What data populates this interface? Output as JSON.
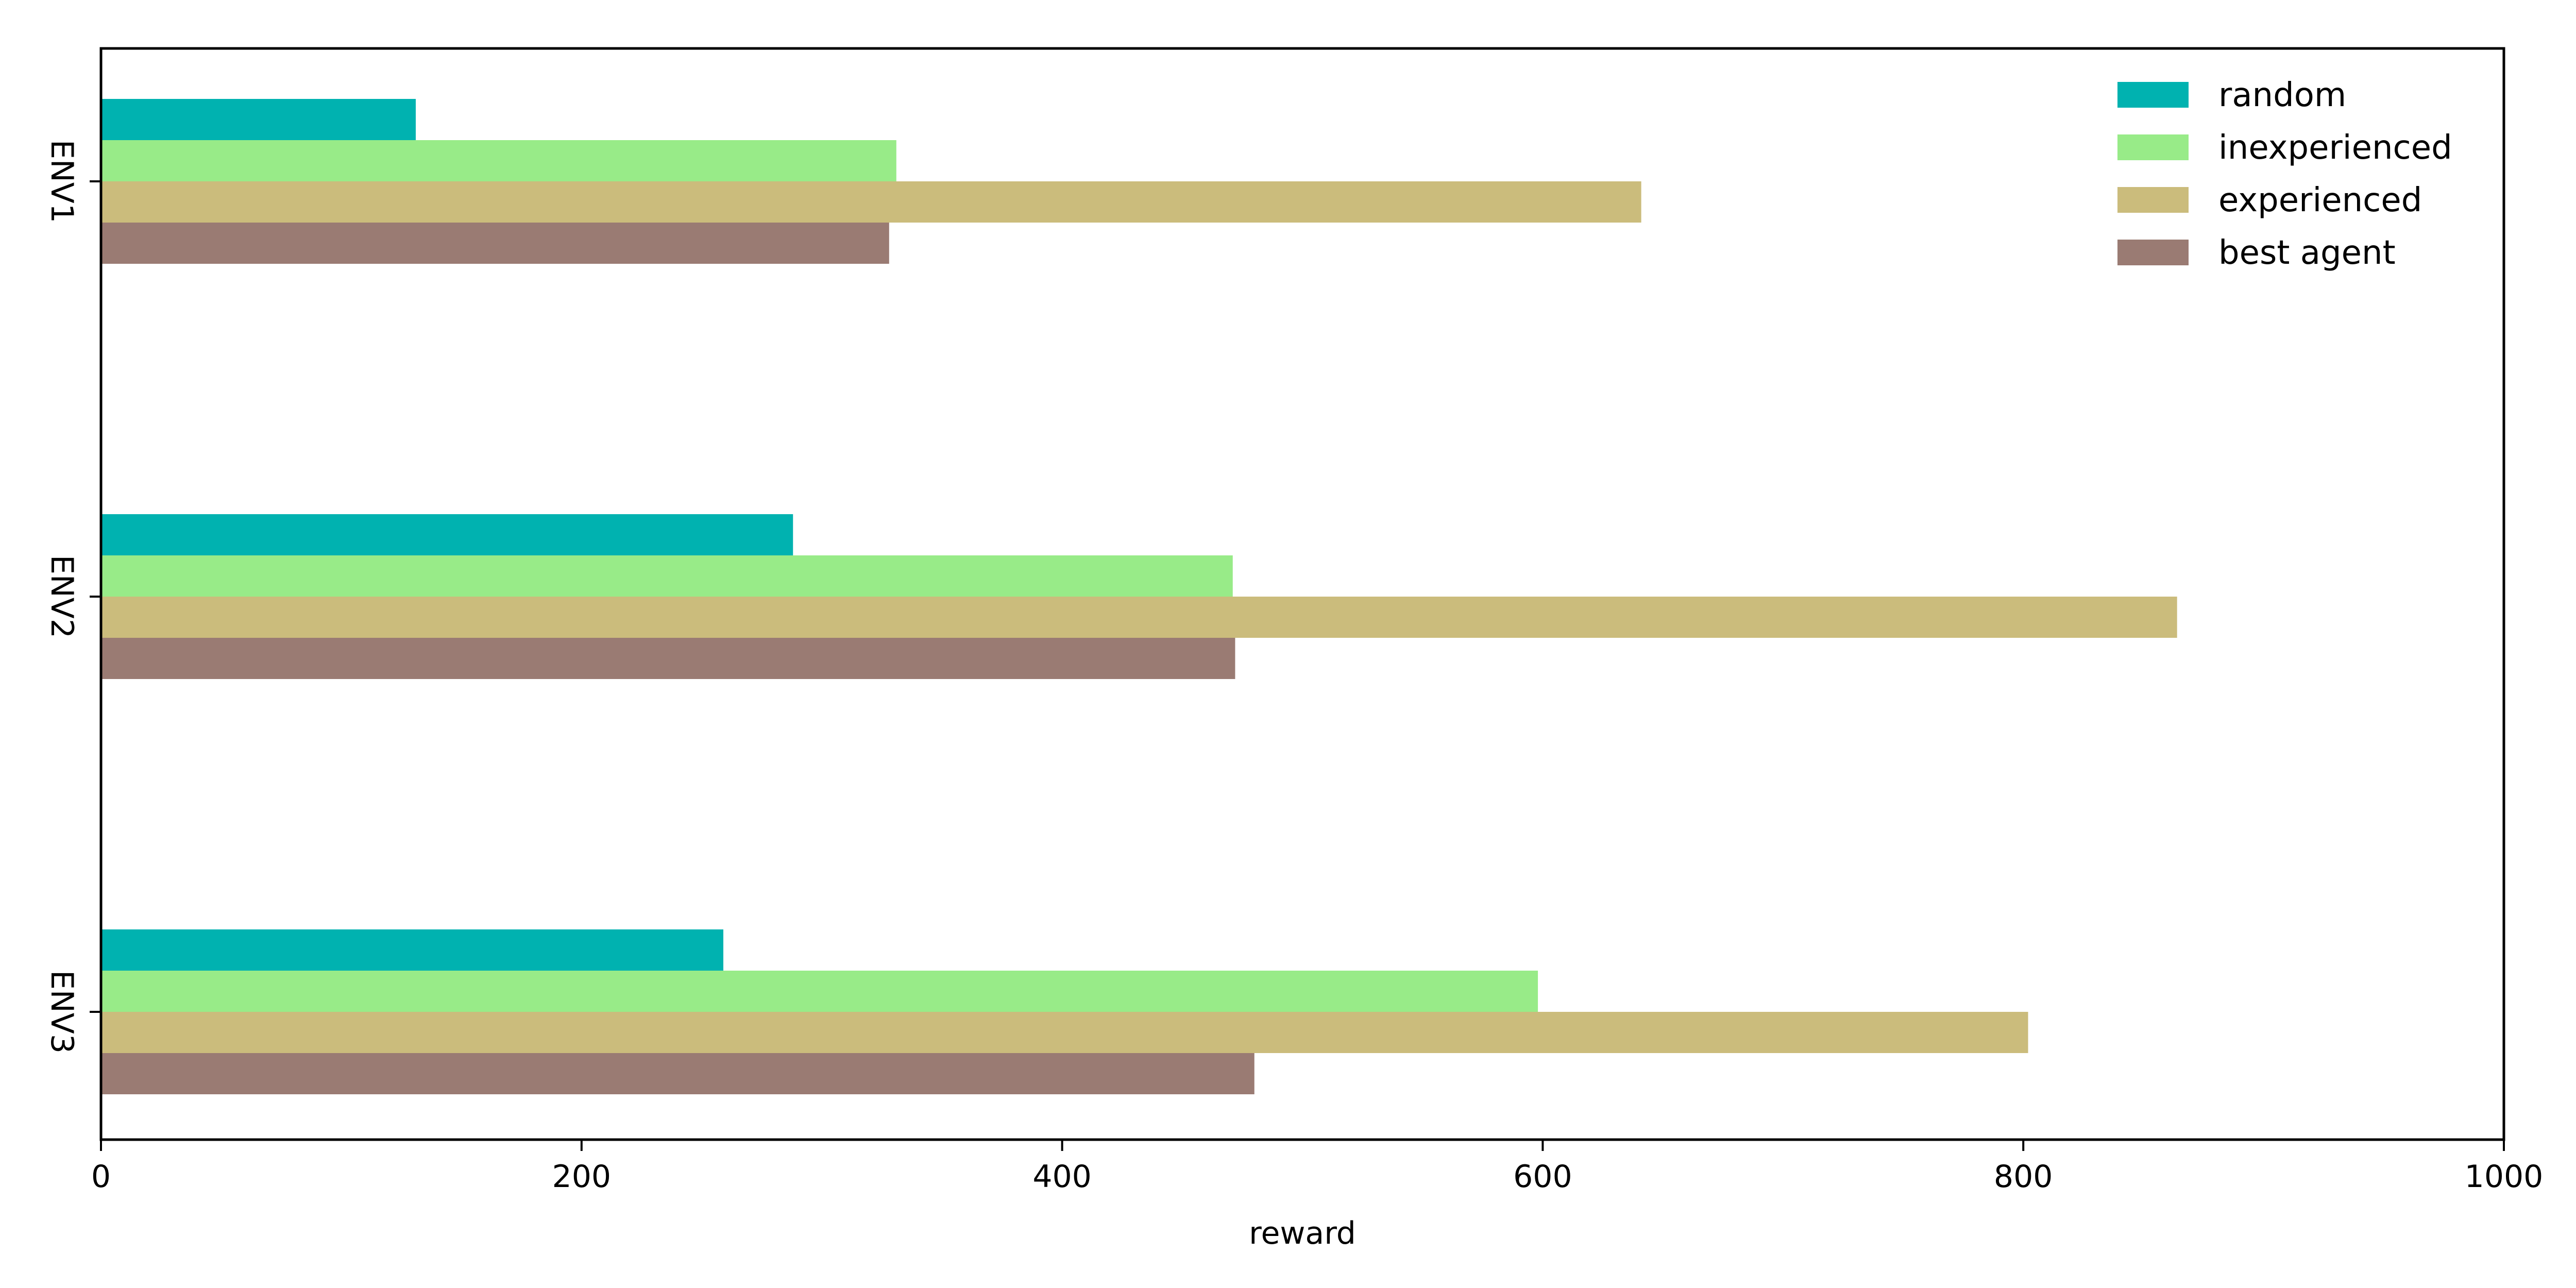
{
  "chart_data": {
    "type": "bar",
    "orientation": "horizontal",
    "categories": [
      "ENV1",
      "ENV2",
      "ENV3"
    ],
    "series": [
      {
        "name": "random",
        "color": "#00B2B0",
        "values": [
          131,
          288,
          259
        ]
      },
      {
        "name": "inexperienced",
        "color": "#98EB88",
        "values": [
          331,
          471,
          598
        ]
      },
      {
        "name": "experienced",
        "color": "#CBBC7C",
        "values": [
          641,
          864,
          802
        ]
      },
      {
        "name": "best agent",
        "color": "#9A7B73",
        "values": [
          328,
          472,
          480
        ]
      }
    ],
    "xlabel": "reward",
    "ylabel": "",
    "xlim": [
      0,
      1000
    ],
    "xticks": [
      0,
      200,
      400,
      600,
      800,
      1000
    ],
    "grid": false,
    "legend_position": "top-right"
  }
}
